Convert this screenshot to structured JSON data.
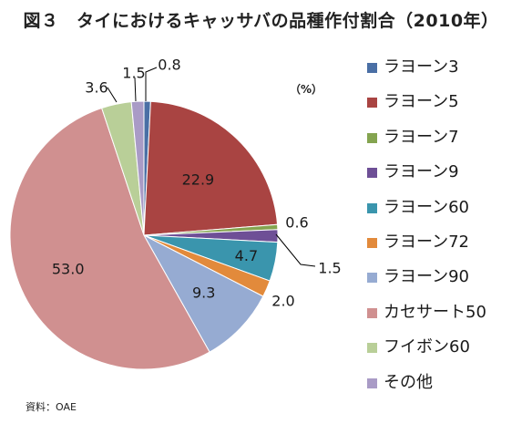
{
  "title": "図３　タイにおけるキャッサバの品種作付割合（2010年）",
  "unit": "（%）",
  "source": "資料：OAE",
  "chart_data": {
    "type": "pie",
    "title": "図３　タイにおけるキャッサバの品種作付割合（2010年）",
    "unit": "%",
    "start_angle_deg": 0,
    "direction": "clockwise",
    "legend_position": "right",
    "slices": [
      {
        "name": "ラヨーン3",
        "value": 0.8,
        "label": "0.8",
        "color": "#4a6fa5"
      },
      {
        "name": "ラヨーン5",
        "value": 22.9,
        "label": "22.9",
        "color": "#a94442"
      },
      {
        "name": "ラヨーン7",
        "value": 0.6,
        "label": "0.6",
        "color": "#84a450"
      },
      {
        "name": "ラヨーン9",
        "value": 1.5,
        "label": "1.5",
        "color": "#6e4f96"
      },
      {
        "name": "ラヨーン60",
        "value": 4.7,
        "label": "4.7",
        "color": "#3a95ad"
      },
      {
        "name": "ラヨーン72",
        "value": 2.0,
        "label": "2.0",
        "color": "#e28a3b"
      },
      {
        "name": "ラヨーン90",
        "value": 9.3,
        "label": "9.3",
        "color": "#96abd2"
      },
      {
        "name": "カセサート50",
        "value": 53.0,
        "label": "53.0",
        "color": "#d09090"
      },
      {
        "name": "フイボン60",
        "value": 3.6,
        "label": "3.6",
        "color": "#b9cf98"
      },
      {
        "name": "その他",
        "value": 1.5,
        "label": "1.5",
        "color": "#a99bc6"
      }
    ]
  }
}
